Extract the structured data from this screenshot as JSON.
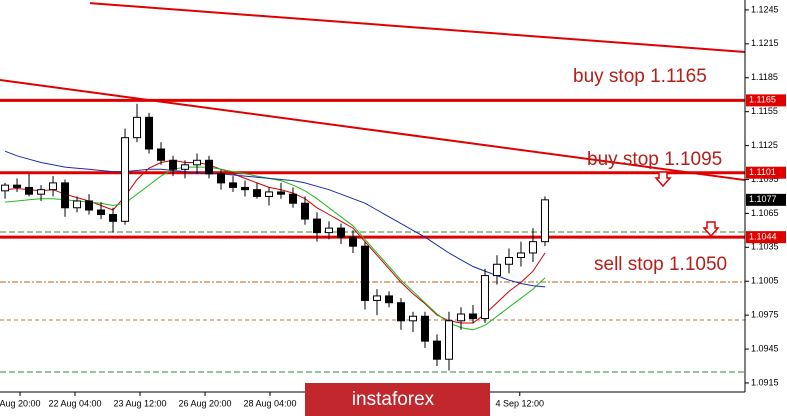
{
  "chart_data": {
    "type": "candlestick",
    "xlim": [
      -0.42,
      61.67
    ],
    "ylim": [
      1.0907,
      1.12538
    ],
    "yticks": [
      1.1245,
      1.1215,
      1.1185,
      1.1155,
      1.1125,
      1.1095,
      1.1065,
      1.1035,
      1.1005,
      1.0975,
      1.0945,
      1.0915
    ],
    "xticks": [
      {
        "value": 1.25,
        "label": "Aug 20:00"
      },
      {
        "value": 5.83,
        "label": "22 Aug 04:00"
      },
      {
        "value": 11.25,
        "label": "23 Aug 12:00"
      },
      {
        "value": 16.67,
        "label": "26 Aug 20:00"
      },
      {
        "value": 22.08,
        "label": "28 Aug 04:00"
      },
      {
        "value": 42.9,
        "label": "4 Sep 12:00"
      }
    ],
    "open": [
      1.1085,
      1.109,
      1.1088,
      1.1082,
      1.1086,
      1.1092,
      1.107,
      1.1076,
      1.1068,
      1.1064,
      1.1058,
      1.1132,
      1.115,
      1.1122,
      1.1112,
      1.1104,
      1.1108,
      1.1112,
      1.11,
      1.1092,
      1.1088,
      1.1086,
      1.108,
      1.1084,
      1.1082,
      1.1074,
      1.106,
      1.1048,
      1.1052,
      1.1044,
      1.1036,
      1.0988,
      1.0992,
      1.0986,
      1.097,
      1.0974,
      1.0952,
      1.0936,
      1.097,
      1.0976,
      1.0972,
      1.101,
      1.102,
      1.1026,
      1.103,
      1.104
    ],
    "high": [
      1.1092,
      1.1096,
      1.11,
      1.109,
      1.1098,
      1.1095,
      1.108,
      1.1082,
      1.1075,
      1.107,
      1.114,
      1.1162,
      1.1154,
      1.1128,
      1.1116,
      1.1112,
      1.1118,
      1.1116,
      1.1104,
      1.1098,
      1.1094,
      1.1092,
      1.1088,
      1.1092,
      1.1088,
      1.108,
      1.1066,
      1.1058,
      1.1056,
      1.105,
      1.104,
      1.0998,
      1.0996,
      1.099,
      1.0978,
      1.0978,
      1.0958,
      1.0978,
      1.0982,
      1.0984,
      1.1016,
      1.1028,
      1.1034,
      1.104,
      1.1052,
      1.108
    ],
    "low": [
      1.1078,
      1.1084,
      1.108,
      1.1076,
      1.108,
      1.1062,
      1.1066,
      1.1064,
      1.106,
      1.1048,
      1.1055,
      1.1128,
      1.1118,
      1.1108,
      1.1098,
      1.1096,
      1.11,
      1.1096,
      1.1086,
      1.1084,
      1.108,
      1.1078,
      1.1072,
      1.1078,
      1.107,
      1.1055,
      1.104,
      1.1042,
      1.1038,
      1.103,
      1.098,
      1.0975,
      1.0982,
      1.0962,
      1.096,
      1.0946,
      1.093,
      1.0926,
      1.0962,
      1.0968,
      1.0968,
      1.1002,
      1.1012,
      1.1018,
      1.1022,
      1.1036
    ],
    "close": [
      1.109,
      1.1088,
      1.1082,
      1.1086,
      1.1092,
      1.107,
      1.1076,
      1.1068,
      1.1064,
      1.1058,
      1.1132,
      1.115,
      1.1122,
      1.1112,
      1.1104,
      1.1108,
      1.1112,
      1.11,
      1.1092,
      1.1088,
      1.1086,
      1.108,
      1.1084,
      1.1082,
      1.1074,
      1.106,
      1.1048,
      1.1052,
      1.1044,
      1.1036,
      1.0988,
      1.0992,
      1.0986,
      1.097,
      1.0974,
      1.0952,
      1.0936,
      1.097,
      1.0976,
      1.0972,
      1.101,
      1.102,
      1.1026,
      1.103,
      1.104,
      1.1077
    ],
    "indicators": [
      {
        "color": "#d00000",
        "values": [
          1.1086,
          1.1087,
          1.1086,
          1.1085,
          1.1086,
          1.1082,
          1.1079,
          1.1076,
          1.1072,
          1.1068,
          1.108,
          1.1095,
          1.1105,
          1.111,
          1.1112,
          1.111,
          1.111,
          1.1108,
          1.1104,
          1.11,
          1.1096,
          1.1092,
          1.1088,
          1.1086,
          1.1083,
          1.1078,
          1.107,
          1.1064,
          1.1058,
          1.1052,
          1.104,
          1.1028,
          1.1016,
          1.1004,
          1.0994,
          1.0985,
          1.0975,
          1.097,
          1.0968,
          1.0968,
          1.0976,
          1.0986,
          1.0996,
          1.1004,
          1.1014,
          1.103
        ]
      },
      {
        "color": "#22bb22",
        "values": [
          1.1075,
          1.1076,
          1.1077,
          1.1078,
          1.1078,
          1.1077,
          1.1076,
          1.1075,
          1.1074,
          1.1072,
          1.1074,
          1.1082,
          1.109,
          1.1098,
          1.1104,
          1.1106,
          1.1106,
          1.1106,
          1.1104,
          1.1102,
          1.11,
          1.1098,
          1.1096,
          1.1094,
          1.109,
          1.1085,
          1.1078,
          1.107,
          1.1062,
          1.1054,
          1.1042,
          1.103,
          1.1018,
          1.1006,
          1.0996,
          1.0986,
          1.0976,
          1.0968,
          1.0964,
          1.0962,
          1.0966,
          1.0974,
          1.0982,
          1.099,
          1.0998,
          1.1008
        ]
      },
      {
        "color": "#1a2fa8",
        "values": [
          1.112,
          1.1116,
          1.1113,
          1.111,
          1.1108,
          1.1106,
          1.1105,
          1.1104,
          1.1103,
          1.1102,
          1.1102,
          1.1103,
          1.1104,
          1.1104,
          1.1103,
          1.1102,
          1.1101,
          1.11,
          1.11,
          1.1099,
          1.1098,
          1.1097,
          1.1096,
          1.1095,
          1.1094,
          1.1092,
          1.1089,
          1.1086,
          1.1082,
          1.1078,
          1.1074,
          1.1068,
          1.1062,
          1.1056,
          1.105,
          1.1044,
          1.1037,
          1.103,
          1.1024,
          1.1018,
          1.1014,
          1.101,
          1.1006,
          1.1003,
          1.1001,
          1.1
        ]
      }
    ],
    "trend_lines": [
      {
        "color": "#e00000",
        "x": [
          7.08,
          61.67
        ],
        "y": [
          1.1251,
          1.12078
        ]
      },
      {
        "color": "#e00000",
        "x": [
          -0.42,
          61.67
        ],
        "y": [
          1.1183,
          1.10945
        ]
      }
    ],
    "price_lines": [
      {
        "value": 1.1165,
        "color": "#e00000"
      },
      {
        "value": 1.1101,
        "color": "#e00000"
      },
      {
        "value": 1.1044,
        "color": "#e00000"
      }
    ],
    "price_labels": [
      {
        "value": 1.1165,
        "color": "#e00000"
      },
      {
        "value": 1.1101,
        "color": "#e00000"
      },
      {
        "value": 1.1077,
        "color": "#000000"
      },
      {
        "value": 1.1044,
        "color": "#e00000"
      }
    ],
    "levels": [
      {
        "value": 1.10486,
        "color": "#2e8b2e",
        "dash": "6 3"
      },
      {
        "value": 1.10043,
        "color": "#b5651d",
        "dash": "6 2 2 2"
      },
      {
        "value": 1.09707,
        "color": "#c0704a",
        "dash": "4 3"
      },
      {
        "value": 1.09247,
        "color": "#2e8b2e",
        "dash": "6 3"
      }
    ],
    "annotations": [
      "buy stop 1.1165",
      "buy stop 1.1095",
      "sell stop 1.1050"
    ],
    "watermark": "instaforex"
  }
}
